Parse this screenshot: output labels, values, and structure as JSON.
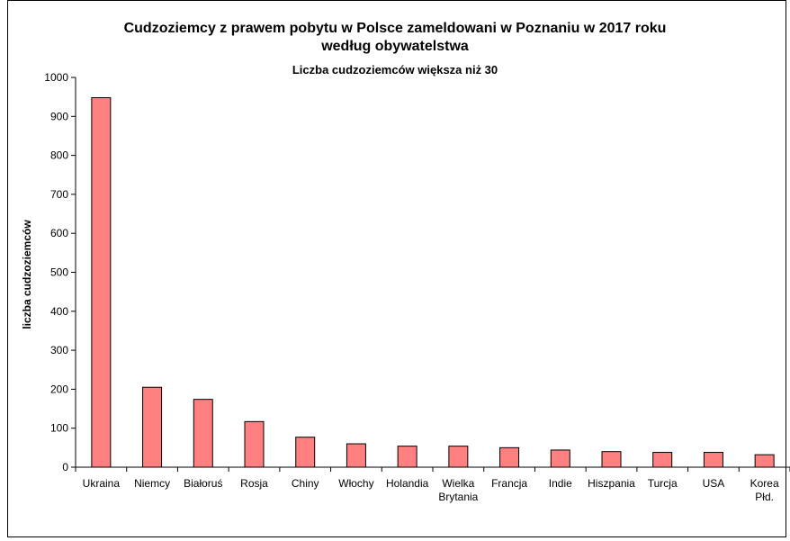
{
  "chart_data": {
    "type": "bar",
    "title": "Cudzoziemcy z prawem pobytu w Polsce zameldowani w Poznaniu w 2017 roku",
    "title_line2": "według obywatelstwa",
    "subtitle": "Liczba cudzoziemców większa niż 30",
    "xlabel": "",
    "ylabel": "liczba cudzoziemców",
    "categories": [
      "Ukraina",
      "Niemcy",
      "Białoruś",
      "Rosja",
      "Chiny",
      "Włochy",
      "Holandia",
      "Wielka Brytania",
      "Francja",
      "Indie",
      "Hiszpania",
      "Turcja",
      "USA",
      "Korea Płd."
    ],
    "category_lines": [
      [
        "Ukraina"
      ],
      [
        "Niemcy"
      ],
      [
        "Białoruś"
      ],
      [
        "Rosja"
      ],
      [
        "Chiny"
      ],
      [
        "Włochy"
      ],
      [
        "Holandia"
      ],
      [
        "Wielka",
        "Brytania"
      ],
      [
        "Francja"
      ],
      [
        "Indie"
      ],
      [
        "Hiszpania"
      ],
      [
        "Turcja"
      ],
      [
        "USA"
      ],
      [
        "Korea",
        "Płd."
      ]
    ],
    "values": [
      948,
      205,
      174,
      117,
      77,
      60,
      54,
      54,
      50,
      44,
      40,
      38,
      38,
      32
    ],
    "ylim": [
      0,
      1000
    ],
    "yticks": [
      0,
      100,
      200,
      300,
      400,
      500,
      600,
      700,
      800,
      900,
      1000
    ],
    "grid": false,
    "legend": "none",
    "bar_color": "#ff8080"
  }
}
